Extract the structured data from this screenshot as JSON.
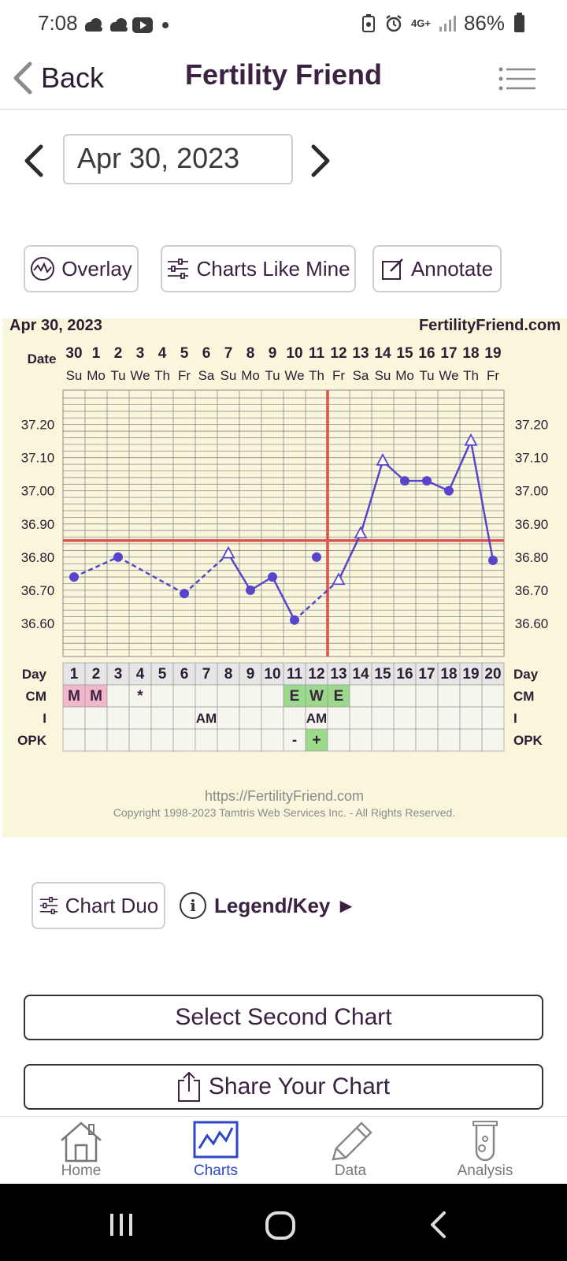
{
  "status_bar": {
    "time": "7:08",
    "battery": "86%",
    "network": "4G+"
  },
  "header": {
    "back_label": "Back",
    "title": "Fertility Friend"
  },
  "date_nav": {
    "date": "Apr 30, 2023"
  },
  "tools": {
    "overlay": "Overlay",
    "charts_like_mine": "Charts Like Mine",
    "annotate": "Annotate"
  },
  "chart": {
    "title_date": "Apr 30, 2023",
    "brand": "FertilityFriend.com",
    "date_row_label": "Date",
    "dates": [
      "30",
      "1",
      "2",
      "3",
      "4",
      "5",
      "6",
      "7",
      "8",
      "9",
      "10",
      "11",
      "12",
      "13",
      "14",
      "15",
      "16",
      "17",
      "18",
      "19"
    ],
    "weekdays": [
      "Su",
      "Mo",
      "Tu",
      "We",
      "Th",
      "Fr",
      "Sa",
      "Su",
      "Mo",
      "Tu",
      "We",
      "Th",
      "Fr",
      "Sa",
      "Su",
      "Mo",
      "Tu",
      "We",
      "Th",
      "Fr"
    ],
    "row_labels": {
      "day": "Day",
      "cm": "CM",
      "i": "I",
      "opk": "OPK"
    },
    "cm_cells": [
      "M",
      "M",
      "",
      "*",
      "",
      "",
      "",
      "",
      "",
      "",
      "E",
      "W",
      "E",
      "",
      "",
      "",
      "",
      "",
      "",
      ""
    ],
    "i_cells": [
      {
        "day": 7,
        "text": "AM"
      },
      {
        "day": 12,
        "text": "AM"
      }
    ],
    "opk_cells": [
      "",
      "",
      "",
      "",
      "",
      "",
      "",
      "",
      "",
      "",
      "-",
      "+",
      "",
      "",
      "",
      "",
      "",
      "",
      "",
      ""
    ],
    "footer_url": "https://FertilityFriend.com",
    "footer_copyright": "Copyright 1998-2023 Tamtris Web Services Inc. - All Rights Reserved."
  },
  "chart_data": {
    "type": "line",
    "x_label": "Day",
    "x": [
      1,
      2,
      3,
      4,
      5,
      6,
      7,
      8,
      9,
      10,
      11,
      12,
      13,
      14,
      15,
      16,
      17,
      18,
      19,
      20
    ],
    "ylim": [
      36.5,
      37.28
    ],
    "y_ticks": [
      "37.20",
      "37.10",
      "37.00",
      "36.90",
      "36.80",
      "36.70",
      "36.60"
    ],
    "series": [
      {
        "values": [
          36.74,
          null,
          36.8,
          null,
          null,
          36.69,
          null,
          36.81,
          36.7,
          36.74,
          36.61,
          36.8,
          36.73,
          36.87,
          37.09,
          37.03,
          37.03,
          37.0,
          37.15,
          36.79
        ],
        "markers": [
          "dot",
          null,
          "dot",
          null,
          null,
          "dot",
          null,
          "triangle",
          "dot",
          "dot",
          "dot",
          "dot",
          "triangle",
          "triangle",
          "triangle",
          "dot",
          "dot",
          "dot",
          "triangle",
          "dot"
        ],
        "excluded_days": [
          12
        ]
      }
    ],
    "coverline": 36.85,
    "ovulation_day": 13,
    "colors": {
      "line": "#5945cc",
      "coverline": "#d9534f",
      "grid": "#8c8c8c",
      "cm_menses": "#f3b7cc",
      "cm_fertile": "#9bd98b",
      "panel_bg": "#faf6dc"
    }
  },
  "bottom_actions": {
    "chart_duo": "Chart Duo",
    "legend_key": "Legend/Key ►",
    "select_second": "Select Second Chart",
    "share": "Share Your Chart"
  },
  "bottom_nav": {
    "items": [
      {
        "label": "Home",
        "icon": "home-icon"
      },
      {
        "label": "Charts",
        "icon": "chart-icon",
        "active": true
      },
      {
        "label": "Data",
        "icon": "pencil-icon"
      },
      {
        "label": "Analysis",
        "icon": "test-tube-icon"
      }
    ]
  }
}
